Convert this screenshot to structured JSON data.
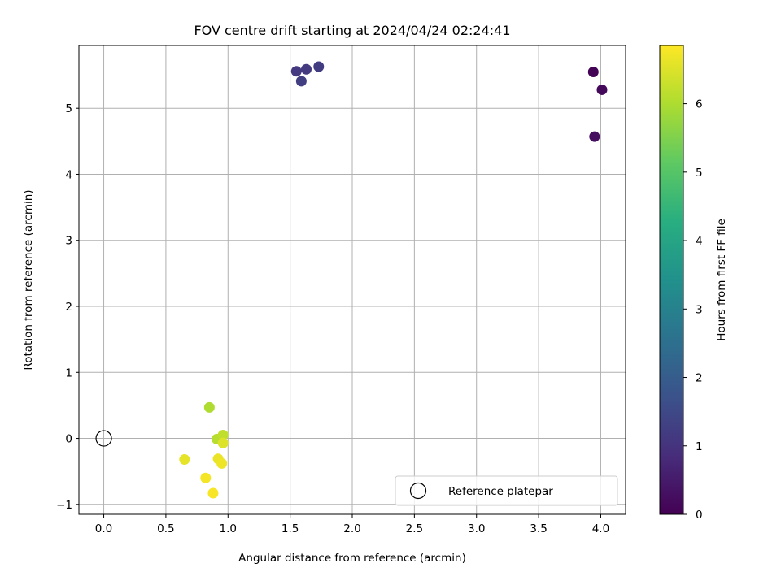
{
  "chart_data": {
    "type": "scatter",
    "title": "FOV centre drift starting at 2024/04/24 02:24:41",
    "xlabel": "Angular distance from reference (arcmin)",
    "ylabel": "Rotation from reference (arcmin)",
    "xlim": [
      -0.2,
      4.2
    ],
    "ylim": [
      -1.15,
      5.95
    ],
    "xticks": [
      0.0,
      0.5,
      1.0,
      1.5,
      2.0,
      2.5,
      3.0,
      3.5,
      4.0
    ],
    "xtick_labels": [
      "0.0",
      "0.5",
      "1.0",
      "1.5",
      "2.0",
      "2.5",
      "3.0",
      "3.5",
      "4.0"
    ],
    "yticks": [
      -1,
      0,
      1,
      2,
      3,
      4,
      5
    ],
    "ytick_labels": [
      "−1",
      "0",
      "1",
      "2",
      "3",
      "4",
      "5"
    ],
    "grid": true,
    "legend": {
      "location": "lower right",
      "entries": [
        "Reference platepar"
      ]
    },
    "reference_point": {
      "x": 0.0,
      "y": 0.0
    },
    "colorbar": {
      "label": "Hours from first FF file",
      "colormap": "viridis",
      "range": [
        0,
        6.85
      ],
      "ticks": [
        0,
        1,
        2,
        3,
        4,
        5,
        6
      ],
      "tick_labels": [
        "0",
        "1",
        "2",
        "3",
        "4",
        "5",
        "6"
      ]
    },
    "points": [
      {
        "x": 3.94,
        "y": 5.55,
        "hours": 0.05
      },
      {
        "x": 4.01,
        "y": 5.28,
        "hours": 0.15
      },
      {
        "x": 3.95,
        "y": 4.57,
        "hours": 0.25
      },
      {
        "x": 1.55,
        "y": 5.56,
        "hours": 1.1
      },
      {
        "x": 1.63,
        "y": 5.59,
        "hours": 1.15
      },
      {
        "x": 1.73,
        "y": 5.63,
        "hours": 1.2
      },
      {
        "x": 1.59,
        "y": 5.41,
        "hours": 1.25
      },
      {
        "x": 0.85,
        "y": 0.47,
        "hours": 6.0
      },
      {
        "x": 0.91,
        "y": -0.01,
        "hours": 6.1
      },
      {
        "x": 0.96,
        "y": 0.05,
        "hours": 6.2
      },
      {
        "x": 0.96,
        "y": -0.07,
        "hours": 6.5
      },
      {
        "x": 0.65,
        "y": -0.32,
        "hours": 6.6
      },
      {
        "x": 0.92,
        "y": -0.31,
        "hours": 6.65
      },
      {
        "x": 0.95,
        "y": -0.38,
        "hours": 6.7
      },
      {
        "x": 0.82,
        "y": -0.6,
        "hours": 6.75
      },
      {
        "x": 0.88,
        "y": -0.83,
        "hours": 6.8
      }
    ]
  }
}
